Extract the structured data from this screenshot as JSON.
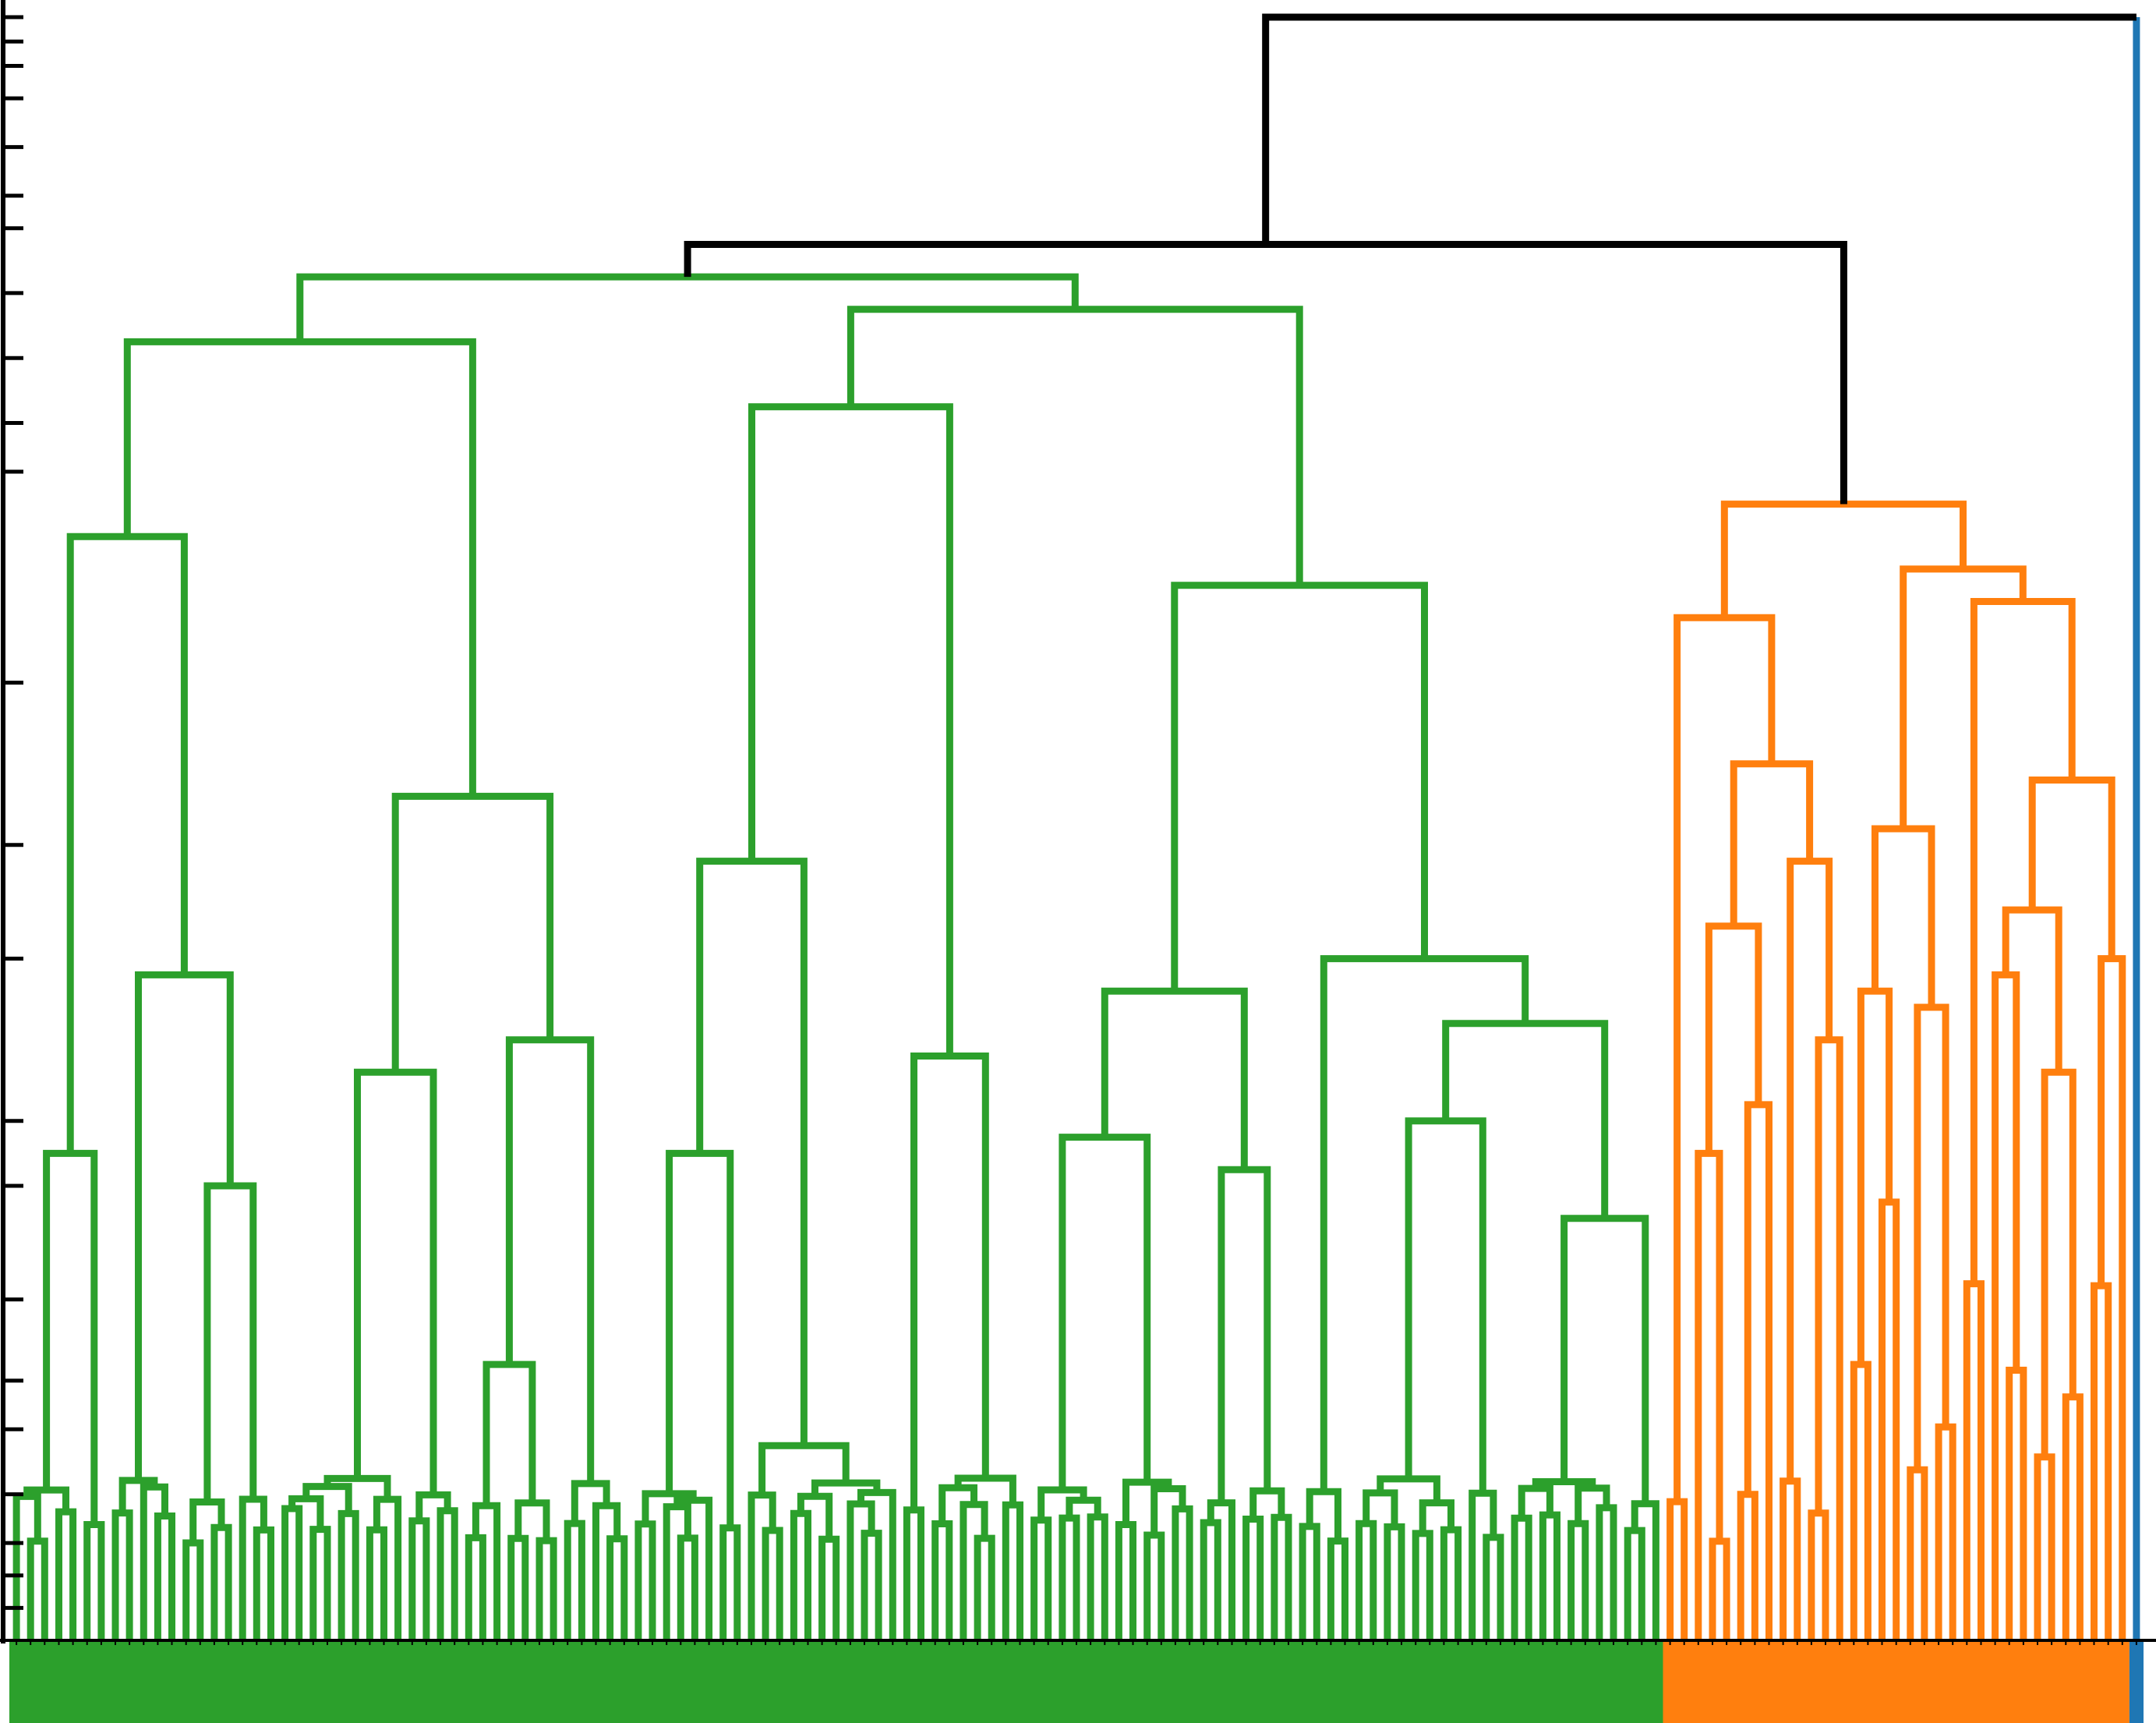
{
  "chart_data": {
    "type": "dendrogram",
    "title": "",
    "xlabel": "",
    "ylabel": "",
    "leaf_count": 151,
    "ylim": [
      0,
      1
    ],
    "log_scale_y": false,
    "grid": false,
    "legend": "none",
    "colors": {
      "cluster_green": "#2ca02c",
      "cluster_orange": "#ff7f0e",
      "cluster_blue": "#1f77b4",
      "above_threshold": "#000000",
      "axis": "#000000",
      "background": "#ffffff"
    },
    "clusters": [
      {
        "color": "#2ca02c",
        "leaves": 117,
        "merge_heights": [
          0.12,
          0.17,
          0.26,
          0.28,
          0.29,
          0.3,
          0.35,
          0.3,
          0.31,
          0.32,
          0.36,
          0.37,
          0.38,
          0.4,
          0.41,
          0.42,
          0.48,
          0.52,
          0.65,
          0.68,
          0.76,
          0.8,
          0.82,
          0.84
        ]
      },
      {
        "color": "#ff7f0e",
        "leaves": 33,
        "merge_heights": [
          0.27,
          0.3,
          0.33,
          0.35,
          0.37,
          0.39,
          0.4,
          0.41,
          0.42,
          0.44,
          0.45,
          0.48,
          0.5,
          0.53,
          0.54,
          0.63,
          0.64,
          0.66,
          0.7
        ]
      },
      {
        "color": "#1f77b4",
        "leaves": 1,
        "merge_heights": []
      }
    ],
    "top_links": [
      {
        "joins": [
          "green",
          "orange"
        ],
        "height": 0.86,
        "color": "#000000"
      },
      {
        "joins": [
          "green+orange",
          "blue"
        ],
        "height": 1.0,
        "color": "#000000"
      }
    ]
  }
}
